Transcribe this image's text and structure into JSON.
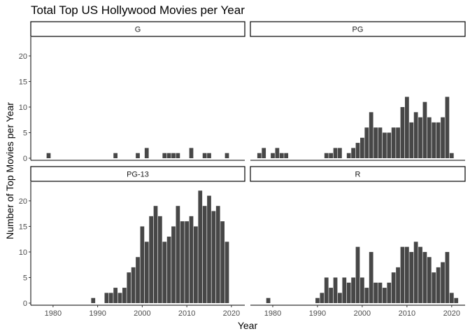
{
  "chart_data": {
    "type": "bar",
    "title": "Total Top US Hollywood Movies per Year",
    "xlabel": "Year",
    "ylabel": "Number of Top Movies per Year",
    "xlim": [
      1975,
      2023
    ],
    "ylim": [
      0,
      23
    ],
    "x_ticks": [
      1980,
      1990,
      2000,
      2010,
      2020
    ],
    "y_ticks": [
      0,
      5,
      10,
      15,
      20
    ],
    "facet_by": "rating",
    "grid": false,
    "panels": [
      {
        "label": "G",
        "x": [
          1979,
          1994,
          1999,
          2001,
          2005,
          2006,
          2007,
          2008,
          2011,
          2014,
          2015,
          2019
        ],
        "values": [
          1,
          1,
          1,
          2,
          1,
          1,
          1,
          1,
          2,
          1,
          1,
          1
        ]
      },
      {
        "label": "PG",
        "x": [
          1977,
          1978,
          1980,
          1981,
          1982,
          1983,
          1992,
          1993,
          1994,
          1995,
          1997,
          1998,
          1999,
          2000,
          2001,
          2002,
          2003,
          2004,
          2005,
          2006,
          2007,
          2008,
          2009,
          2010,
          2011,
          2012,
          2013,
          2014,
          2015,
          2016,
          2017,
          2018,
          2019,
          2020
        ],
        "values": [
          1,
          2,
          1,
          2,
          1,
          1,
          1,
          1,
          2,
          2,
          1,
          2,
          3,
          4,
          6,
          9,
          6,
          6,
          5,
          5,
          6,
          6,
          10,
          12,
          7,
          9,
          8,
          11,
          8,
          7,
          7,
          8,
          12,
          1
        ]
      },
      {
        "label": "PG-13",
        "x": [
          1989,
          1992,
          1993,
          1994,
          1995,
          1996,
          1997,
          1998,
          1999,
          2000,
          2001,
          2002,
          2003,
          2004,
          2005,
          2006,
          2007,
          2008,
          2009,
          2010,
          2011,
          2012,
          2013,
          2014,
          2015,
          2016,
          2017,
          2018,
          2019
        ],
        "values": [
          1,
          2,
          2,
          3,
          2,
          3,
          6,
          7,
          9,
          15,
          12,
          17,
          19,
          17,
          12,
          13,
          15,
          19,
          16,
          16,
          17,
          15,
          22,
          19,
          21,
          18,
          19,
          16,
          12
        ]
      },
      {
        "label": "R",
        "x": [
          1979,
          1990,
          1991,
          1992,
          1993,
          1994,
          1995,
          1996,
          1997,
          1998,
          1999,
          2000,
          2001,
          2002,
          2003,
          2004,
          2005,
          2006,
          2007,
          2008,
          2009,
          2010,
          2011,
          2012,
          2013,
          2014,
          2015,
          2016,
          2017,
          2018,
          2019,
          2020,
          2021
        ],
        "values": [
          1,
          1,
          2,
          5,
          3,
          5,
          2,
          5,
          4,
          5,
          11,
          5,
          3,
          10,
          4,
          4,
          3,
          4,
          6,
          7,
          11,
          11,
          10,
          12,
          11,
          10,
          9,
          6,
          7,
          8,
          10,
          2,
          1
        ]
      }
    ]
  }
}
